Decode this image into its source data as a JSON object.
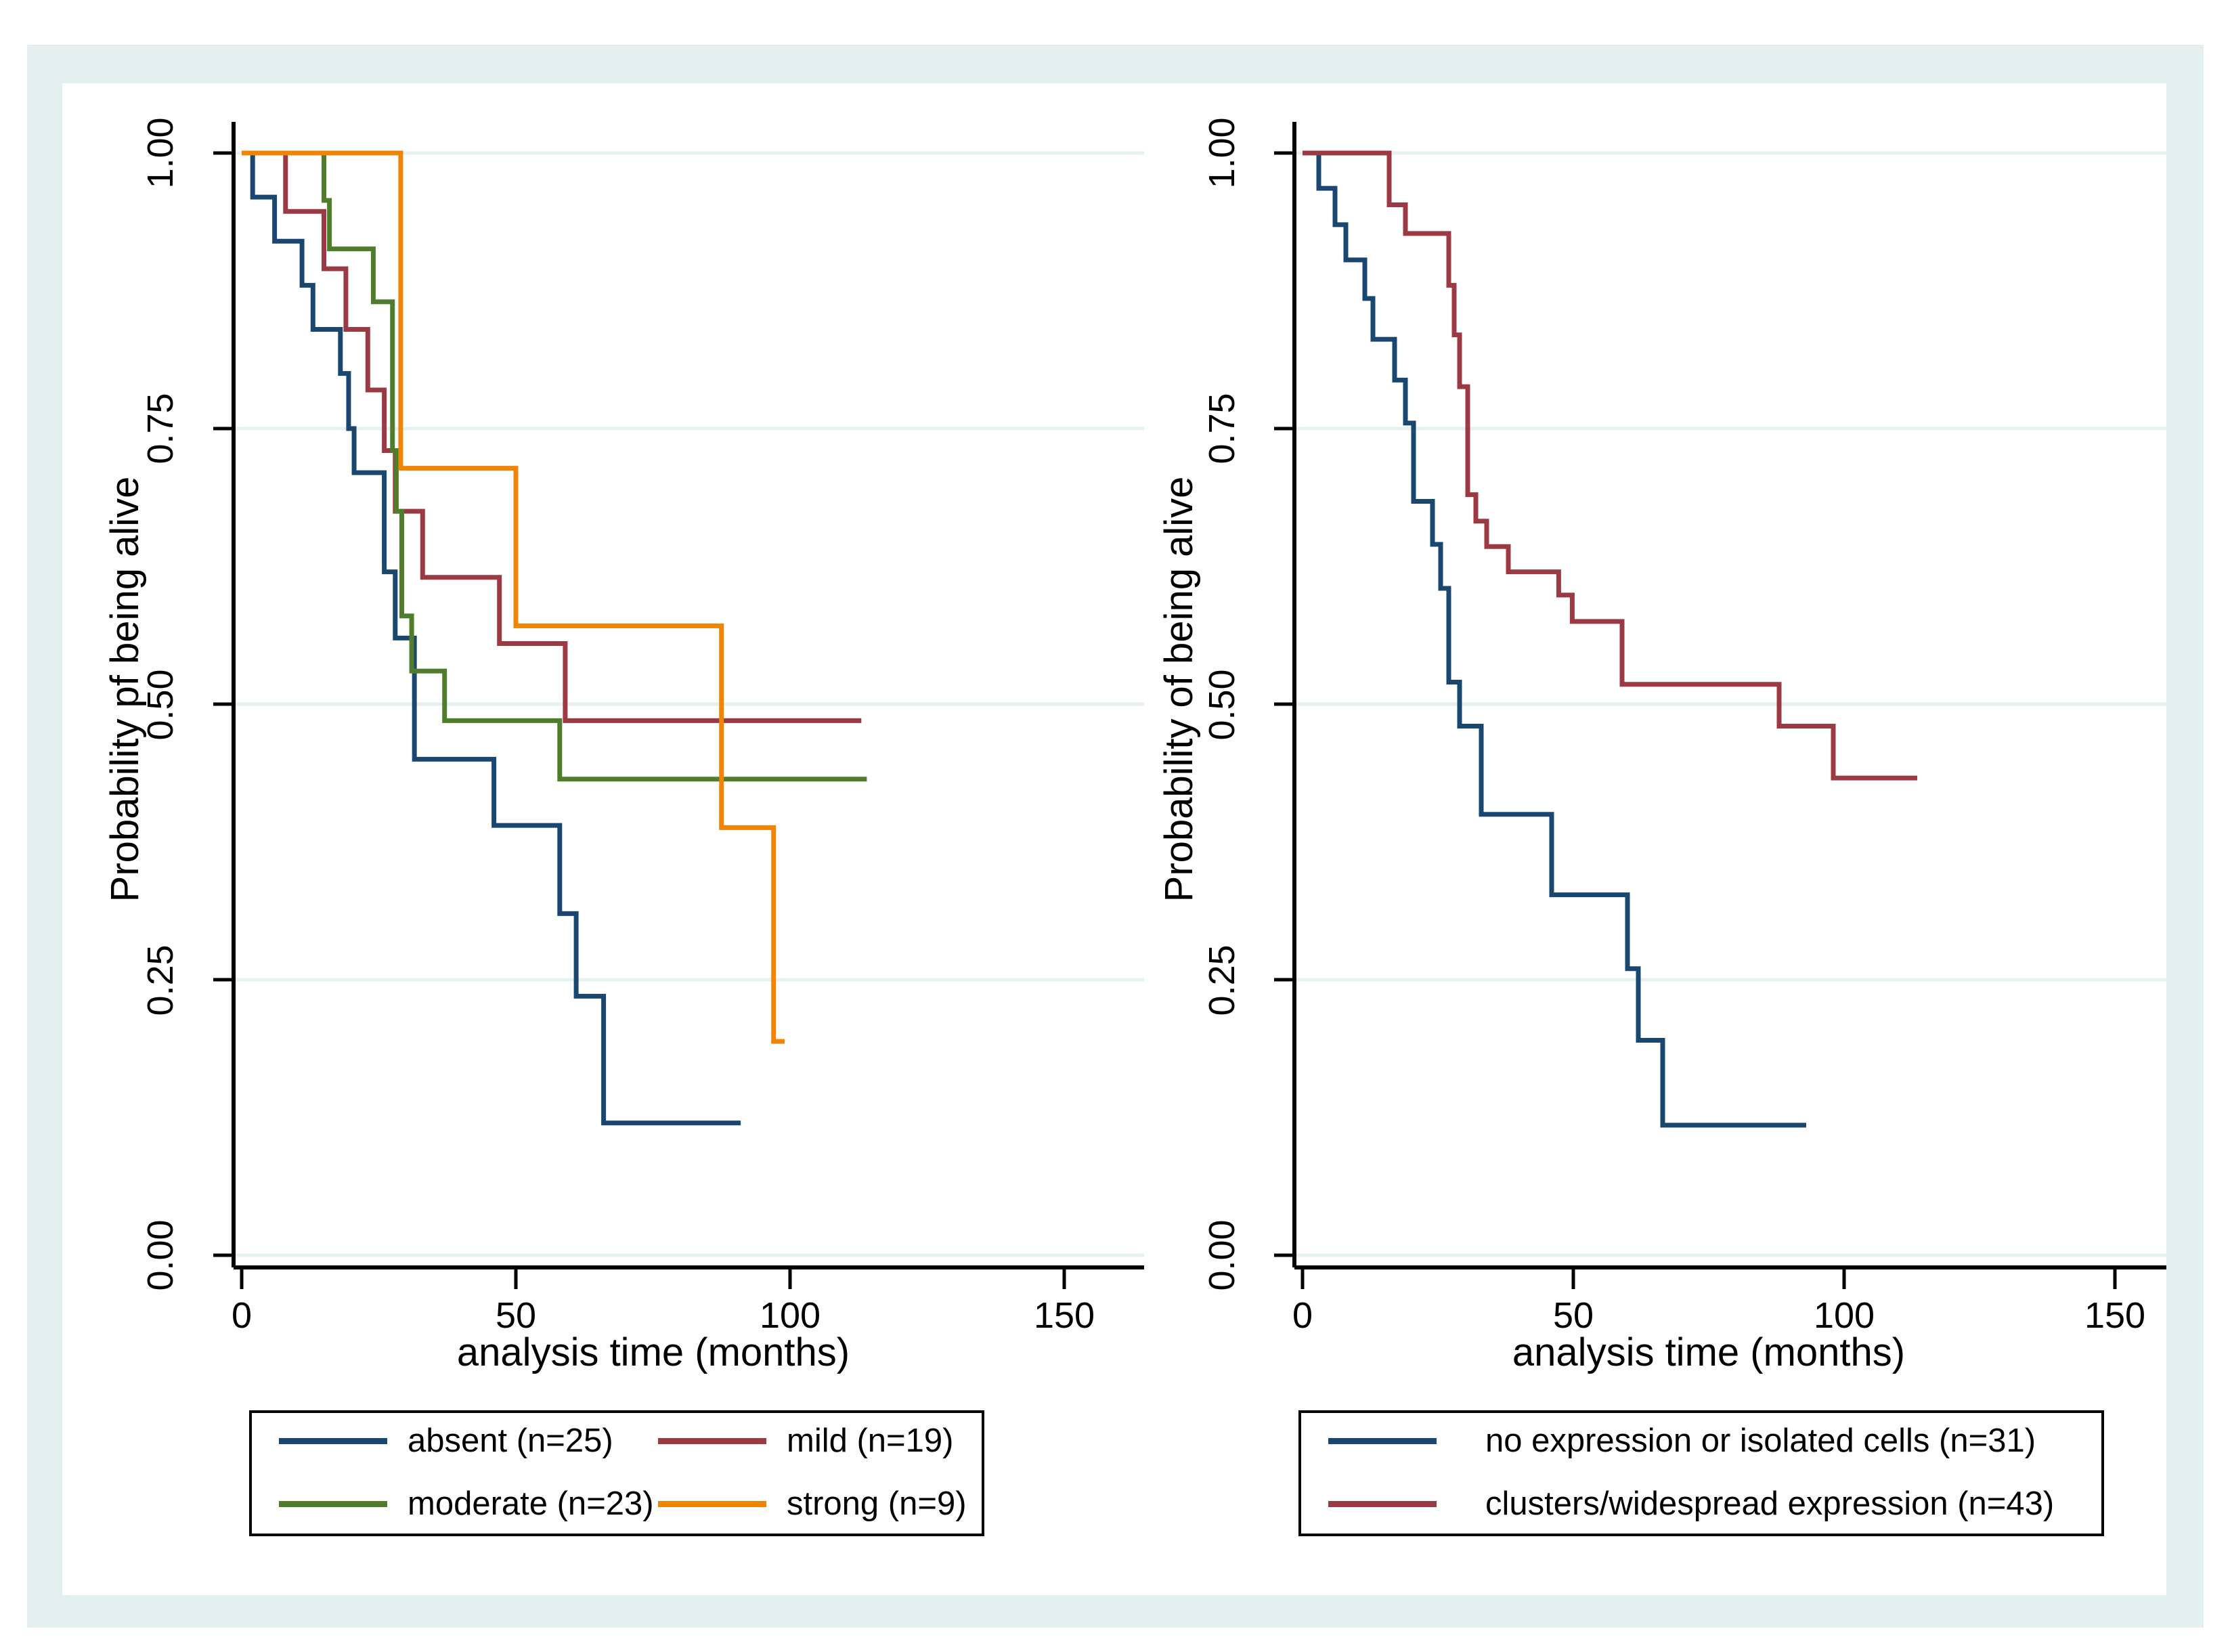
{
  "colors": {
    "navy": "#1a476f",
    "maroon": "#9c3a44",
    "green": "#4f7d2c",
    "orange": "#ef8407",
    "frame_background": "#e4eff0",
    "gridline": "#e6f1f2",
    "axis": "#000000"
  },
  "left_panel": {
    "ylabel": "Probability pf being alive",
    "xlabel": "analysis time (months)",
    "ytick_labels": [
      "1.00",
      "0.75",
      "0.50",
      "0.25",
      "0.00"
    ],
    "xtick_labels": [
      "0",
      "50",
      "100",
      "150"
    ]
  },
  "right_panel": {
    "ylabel": "Probability of being alive",
    "xlabel": "analysis time (months)",
    "ytick_labels": [
      "1.00",
      "0.75",
      "0.50",
      "0.25",
      "0.00"
    ],
    "xtick_labels": [
      "0",
      "50",
      "100",
      "150"
    ]
  },
  "left_legend": {
    "items": [
      {
        "label": "absent (n=25)",
        "color": "#1a476f"
      },
      {
        "label": "mild (n=19)",
        "color": "#9c3a44"
      },
      {
        "label": "moderate (n=23)",
        "color": "#4f7d2c"
      },
      {
        "label": "strong (n=9)",
        "color": "#ef8407"
      }
    ]
  },
  "right_legend": {
    "items": [
      {
        "label": "no expression or isolated cells (n=31)",
        "color": "#1a476f"
      },
      {
        "label": "clusters/widespread expression (n=43)",
        "color": "#9c3a44"
      }
    ]
  },
  "chart_data": [
    {
      "type": "line",
      "subtype": "kaplan-meier-step",
      "title": "",
      "xlabel": "analysis time (months)",
      "ylabel": "Probability pf being alive",
      "xlim": [
        0,
        150
      ],
      "ylim": [
        0,
        1
      ],
      "x_ticks": [
        0,
        50,
        100,
        150
      ],
      "y_ticks": [
        0,
        0.25,
        0.5,
        0.75,
        1
      ],
      "grid": true,
      "legend_position": "below",
      "series": [
        {
          "name": "absent (n=25)",
          "color": "#1a476f",
          "points": [
            [
              0,
              1
            ],
            [
              2,
              0.96
            ],
            [
              6,
              0.92
            ],
            [
              11,
              0.88
            ],
            [
              13,
              0.84
            ],
            [
              18,
              0.8
            ],
            [
              19.5,
              0.75
            ],
            [
              20.5,
              0.71
            ],
            [
              26,
              0.62
            ],
            [
              28,
              0.56
            ],
            [
              31.5,
              0.45
            ],
            [
              46,
              0.39
            ],
            [
              58,
              0.31
            ],
            [
              61,
              0.235
            ],
            [
              66,
              0.12
            ],
            [
              91,
              0.12
            ]
          ]
        },
        {
          "name": "mild (n=19)",
          "color": "#9c3a44",
          "points": [
            [
              0,
              1
            ],
            [
              8,
              0.947
            ],
            [
              15,
              0.895
            ],
            [
              19,
              0.84
            ],
            [
              23,
              0.785
            ],
            [
              26,
              0.73
            ],
            [
              28,
              0.675
            ],
            [
              33,
              0.615
            ],
            [
              47,
              0.555
            ],
            [
              59,
              0.485
            ],
            [
              113,
              0.485
            ]
          ]
        },
        {
          "name": "moderate (n=23)",
          "color": "#4f7d2c",
          "points": [
            [
              0,
              1
            ],
            [
              15,
              0.957
            ],
            [
              16,
              0.913
            ],
            [
              24,
              0.865
            ],
            [
              27.5,
              0.73
            ],
            [
              28.2,
              0.675
            ],
            [
              29.2,
              0.58
            ],
            [
              31,
              0.53
            ],
            [
              37,
              0.485
            ],
            [
              58,
              0.432
            ],
            [
              114,
              0.432
            ]
          ]
        },
        {
          "name": "strong (n=9)",
          "color": "#ef8407",
          "points": [
            [
              0,
              1
            ],
            [
              29,
              0.714
            ],
            [
              50,
              0.571
            ],
            [
              87.5,
              0.388
            ],
            [
              97,
              0.194
            ],
            [
              99,
              0.194
            ]
          ]
        }
      ]
    },
    {
      "type": "line",
      "subtype": "kaplan-meier-step",
      "title": "",
      "xlabel": "analysis time (months)",
      "ylabel": "Probability of being alive",
      "xlim": [
        0,
        150
      ],
      "ylim": [
        0,
        1
      ],
      "x_ticks": [
        0,
        50,
        100,
        150
      ],
      "y_ticks": [
        0,
        0.25,
        0.5,
        0.75,
        1
      ],
      "grid": true,
      "legend_position": "below",
      "series": [
        {
          "name": "no expression or isolated cells (n=31)",
          "color": "#1a476f",
          "points": [
            [
              0,
              1
            ],
            [
              3,
              0.968
            ],
            [
              6,
              0.935
            ],
            [
              8,
              0.903
            ],
            [
              11.5,
              0.868
            ],
            [
              13,
              0.831
            ],
            [
              17,
              0.794
            ],
            [
              19,
              0.755
            ],
            [
              20.5,
              0.684
            ],
            [
              24,
              0.645
            ],
            [
              25.5,
              0.605
            ],
            [
              27,
              0.52
            ],
            [
              29,
              0.48
            ],
            [
              33,
              0.4
            ],
            [
              46,
              0.327
            ],
            [
              60,
              0.26
            ],
            [
              62,
              0.195
            ],
            [
              66.5,
              0.118
            ],
            [
              93,
              0.118
            ]
          ]
        },
        {
          "name": "clusters/widespread expression (n=43)",
          "color": "#9c3a44",
          "points": [
            [
              0,
              1
            ],
            [
              16,
              0.953
            ],
            [
              19,
              0.927
            ],
            [
              27,
              0.88
            ],
            [
              28,
              0.835
            ],
            [
              29,
              0.788
            ],
            [
              30.5,
              0.69
            ],
            [
              32,
              0.666
            ],
            [
              34,
              0.643
            ],
            [
              38,
              0.62
            ],
            [
              47.3,
              0.599
            ],
            [
              49.8,
              0.575
            ],
            [
              59,
              0.518
            ],
            [
              88,
              0.48
            ],
            [
              98,
              0.433
            ],
            [
              113.5,
              0.433
            ]
          ]
        }
      ]
    }
  ]
}
